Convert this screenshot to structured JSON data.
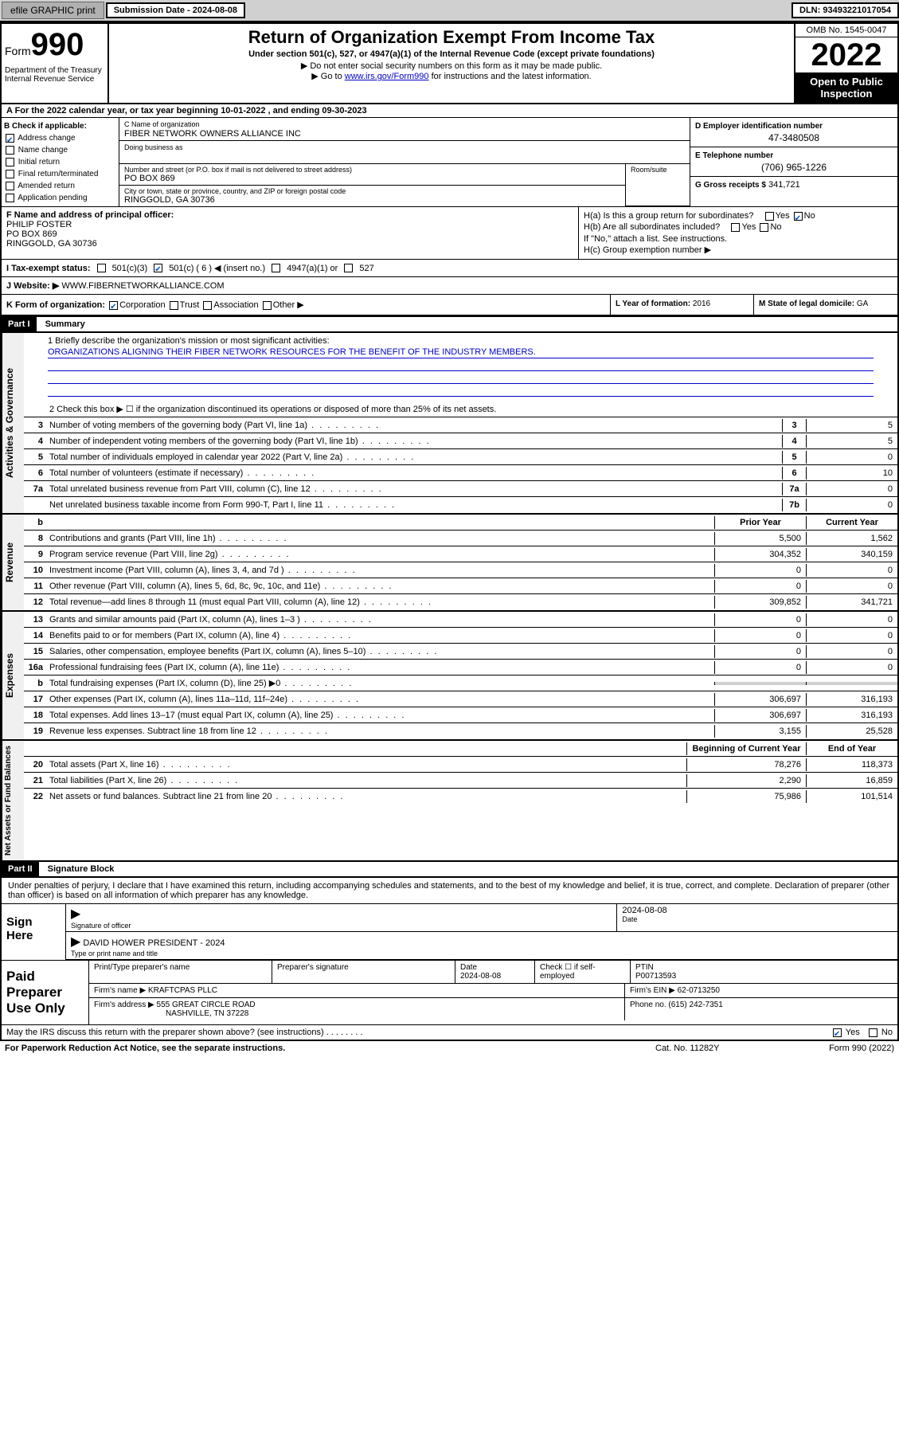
{
  "topbar": {
    "efile": "efile GRAPHIC print",
    "submission": "Submission Date - 2024-08-08",
    "dln": "DLN: 93493221017054"
  },
  "header": {
    "form_word": "Form",
    "form_num": "990",
    "title": "Return of Organization Exempt From Income Tax",
    "subtitle": "Under section 501(c), 527, or 4947(a)(1) of the Internal Revenue Code (except private foundations)",
    "note1": "▶ Do not enter social security numbers on this form as it may be made public.",
    "note2_pre": "▶ Go to ",
    "note2_link": "www.irs.gov/Form990",
    "note2_post": " for instructions and the latest information.",
    "dept": "Department of the Treasury\nInternal Revenue Service",
    "omb": "OMB No. 1545-0047",
    "year": "2022",
    "inspect": "Open to Public Inspection"
  },
  "calendar": "A For the 2022 calendar year, or tax year beginning 10-01-2022    , and ending 09-30-2023",
  "section_b": {
    "label": "B Check if applicable:",
    "items": [
      "Address change",
      "Name change",
      "Initial return",
      "Final return/terminated",
      "Amended return",
      "Application pending"
    ],
    "checked_idx": 0
  },
  "section_c": {
    "name_lbl": "C Name of organization",
    "name_val": "FIBER NETWORK OWNERS ALLIANCE INC",
    "dba_lbl": "Doing business as",
    "dba_val": "",
    "street_lbl": "Number and street (or P.O. box if mail is not delivered to street address)",
    "street_val": "PO BOX 869",
    "room_lbl": "Room/suite",
    "city_lbl": "City or town, state or province, country, and ZIP or foreign postal code",
    "city_val": "RINGGOLD, GA  30736"
  },
  "section_d": {
    "lbl": "D Employer identification number",
    "val": "47-3480508"
  },
  "section_e": {
    "lbl": "E Telephone number",
    "val": "(706) 965-1226"
  },
  "section_g": {
    "lbl": "G Gross receipts $",
    "val": "341,721"
  },
  "section_f": {
    "lbl": "F Name and address of principal officer:",
    "name": "PHILIP FOSTER",
    "addr1": "PO BOX 869",
    "addr2": "RINGGOLD, GA  30736"
  },
  "section_h": {
    "ha": "H(a)  Is this a group return for subordinates?",
    "ha_ans": "No",
    "hb": "H(b)  Are all subordinates included?",
    "hb_note": "If \"No,\" attach a list. See instructions.",
    "hc": "H(c)  Group exemption number ▶"
  },
  "section_i": {
    "lbl": "I   Tax-exempt status:",
    "opts": [
      "501(c)(3)",
      "501(c) ( 6 ) ◀ (insert no.)",
      "4947(a)(1) or",
      "527"
    ],
    "checked_idx": 1
  },
  "section_j": {
    "lbl": "J   Website: ▶",
    "val": "WWW.FIBERNETWORKALLIANCE.COM"
  },
  "section_k": {
    "lbl": "K Form of organization:",
    "opts": [
      "Corporation",
      "Trust",
      "Association",
      "Other ▶"
    ],
    "checked_idx": 0,
    "l_lbl": "L Year of formation:",
    "l_val": "2016",
    "m_lbl": "M State of legal domicile:",
    "m_val": "GA"
  },
  "part1": {
    "header": "Part I",
    "title": "Summary",
    "mission_lbl": "1  Briefly describe the organization's mission or most significant activities:",
    "mission_val": "ORGANIZATIONS ALIGNING THEIR FIBER NETWORK RESOURCES FOR THE BENEFIT OF THE INDUSTRY MEMBERS.",
    "line2": "2   Check this box ▶ ☐  if the organization discontinued its operations or disposed of more than 25% of its net assets.",
    "governance": [
      {
        "n": "3",
        "d": "Number of voting members of the governing body (Part VI, line 1a)",
        "b": "3",
        "v": "5"
      },
      {
        "n": "4",
        "d": "Number of independent voting members of the governing body (Part VI, line 1b)",
        "b": "4",
        "v": "5"
      },
      {
        "n": "5",
        "d": "Total number of individuals employed in calendar year 2022 (Part V, line 2a)",
        "b": "5",
        "v": "0"
      },
      {
        "n": "6",
        "d": "Total number of volunteers (estimate if necessary)",
        "b": "6",
        "v": "10"
      },
      {
        "n": "7a",
        "d": "Total unrelated business revenue from Part VIII, column (C), line 12",
        "b": "7a",
        "v": "0"
      },
      {
        "n": "",
        "d": "Net unrelated business taxable income from Form 990-T, Part I, line 11",
        "b": "7b",
        "v": "0"
      }
    ],
    "col_headers": {
      "prior": "Prior Year",
      "current": "Current Year"
    },
    "revenue": [
      {
        "n": "8",
        "d": "Contributions and grants (Part VIII, line 1h)",
        "p": "5,500",
        "c": "1,562"
      },
      {
        "n": "9",
        "d": "Program service revenue (Part VIII, line 2g)",
        "p": "304,352",
        "c": "340,159"
      },
      {
        "n": "10",
        "d": "Investment income (Part VIII, column (A), lines 3, 4, and 7d )",
        "p": "0",
        "c": "0"
      },
      {
        "n": "11",
        "d": "Other revenue (Part VIII, column (A), lines 5, 6d, 8c, 9c, 10c, and 11e)",
        "p": "0",
        "c": "0"
      },
      {
        "n": "12",
        "d": "Total revenue—add lines 8 through 11 (must equal Part VIII, column (A), line 12)",
        "p": "309,852",
        "c": "341,721"
      }
    ],
    "expenses": [
      {
        "n": "13",
        "d": "Grants and similar amounts paid (Part IX, column (A), lines 1–3 )",
        "p": "0",
        "c": "0"
      },
      {
        "n": "14",
        "d": "Benefits paid to or for members (Part IX, column (A), line 4)",
        "p": "0",
        "c": "0"
      },
      {
        "n": "15",
        "d": "Salaries, other compensation, employee benefits (Part IX, column (A), lines 5–10)",
        "p": "0",
        "c": "0"
      },
      {
        "n": "16a",
        "d": "Professional fundraising fees (Part IX, column (A), line 11e)",
        "p": "0",
        "c": "0"
      },
      {
        "n": "b",
        "d": "Total fundraising expenses (Part IX, column (D), line 25) ▶0",
        "p": "",
        "c": "",
        "shaded": true
      },
      {
        "n": "17",
        "d": "Other expenses (Part IX, column (A), lines 11a–11d, 11f–24e)",
        "p": "306,697",
        "c": "316,193"
      },
      {
        "n": "18",
        "d": "Total expenses. Add lines 13–17 (must equal Part IX, column (A), line 25)",
        "p": "306,697",
        "c": "316,193"
      },
      {
        "n": "19",
        "d": "Revenue less expenses. Subtract line 18 from line 12",
        "p": "3,155",
        "c": "25,528"
      }
    ],
    "net_headers": {
      "begin": "Beginning of Current Year",
      "end": "End of Year"
    },
    "netassets": [
      {
        "n": "20",
        "d": "Total assets (Part X, line 16)",
        "p": "78,276",
        "c": "118,373"
      },
      {
        "n": "21",
        "d": "Total liabilities (Part X, line 26)",
        "p": "2,290",
        "c": "16,859"
      },
      {
        "n": "22",
        "d": "Net assets or fund balances. Subtract line 21 from line 20",
        "p": "75,986",
        "c": "101,514"
      }
    ],
    "gov_label": "Activities & Governance",
    "rev_label": "Revenue",
    "exp_label": "Expenses",
    "net_label": "Net Assets or Fund Balances"
  },
  "part2": {
    "header": "Part II",
    "title": "Signature Block",
    "penalty": "Under penalties of perjury, I declare that I have examined this return, including accompanying schedules and statements, and to the best of my knowledge and belief, it is true, correct, and complete. Declaration of preparer (other than officer) is based on all information of which preparer has any knowledge.",
    "sign_here": "Sign Here",
    "sig_officer_lbl": "Signature of officer",
    "sig_date": "2024-08-08",
    "date_lbl": "Date",
    "name_printed": "DAVID HOWER  PRESIDENT - 2024",
    "name_lbl": "Type or print name and title",
    "paid": "Paid Preparer Use Only",
    "prep_name_lbl": "Print/Type preparer's name",
    "prep_sig_lbl": "Preparer's signature",
    "prep_date": "2024-08-08",
    "prep_check": "Check ☐ if self-employed",
    "ptin_lbl": "PTIN",
    "ptin_val": "P00713593",
    "firm_name_lbl": "Firm's name    ▶",
    "firm_name_val": "KRAFTCPAS PLLC",
    "firm_ein_lbl": "Firm's EIN ▶",
    "firm_ein_val": "62-0713250",
    "firm_addr_lbl": "Firm's address ▶",
    "firm_addr_val": "555 GREAT CIRCLE ROAD",
    "firm_addr_val2": "NASHVILLE, TN  37228",
    "phone_lbl": "Phone no.",
    "phone_val": "(615) 242-7351",
    "discuss": "May the IRS discuss this return with the preparer shown above? (see instructions)",
    "discuss_ans": "Yes"
  },
  "footer": {
    "paperwork": "For Paperwork Reduction Act Notice, see the separate instructions.",
    "cat": "Cat. No. 11282Y",
    "form": "Form 990 (2022)"
  }
}
